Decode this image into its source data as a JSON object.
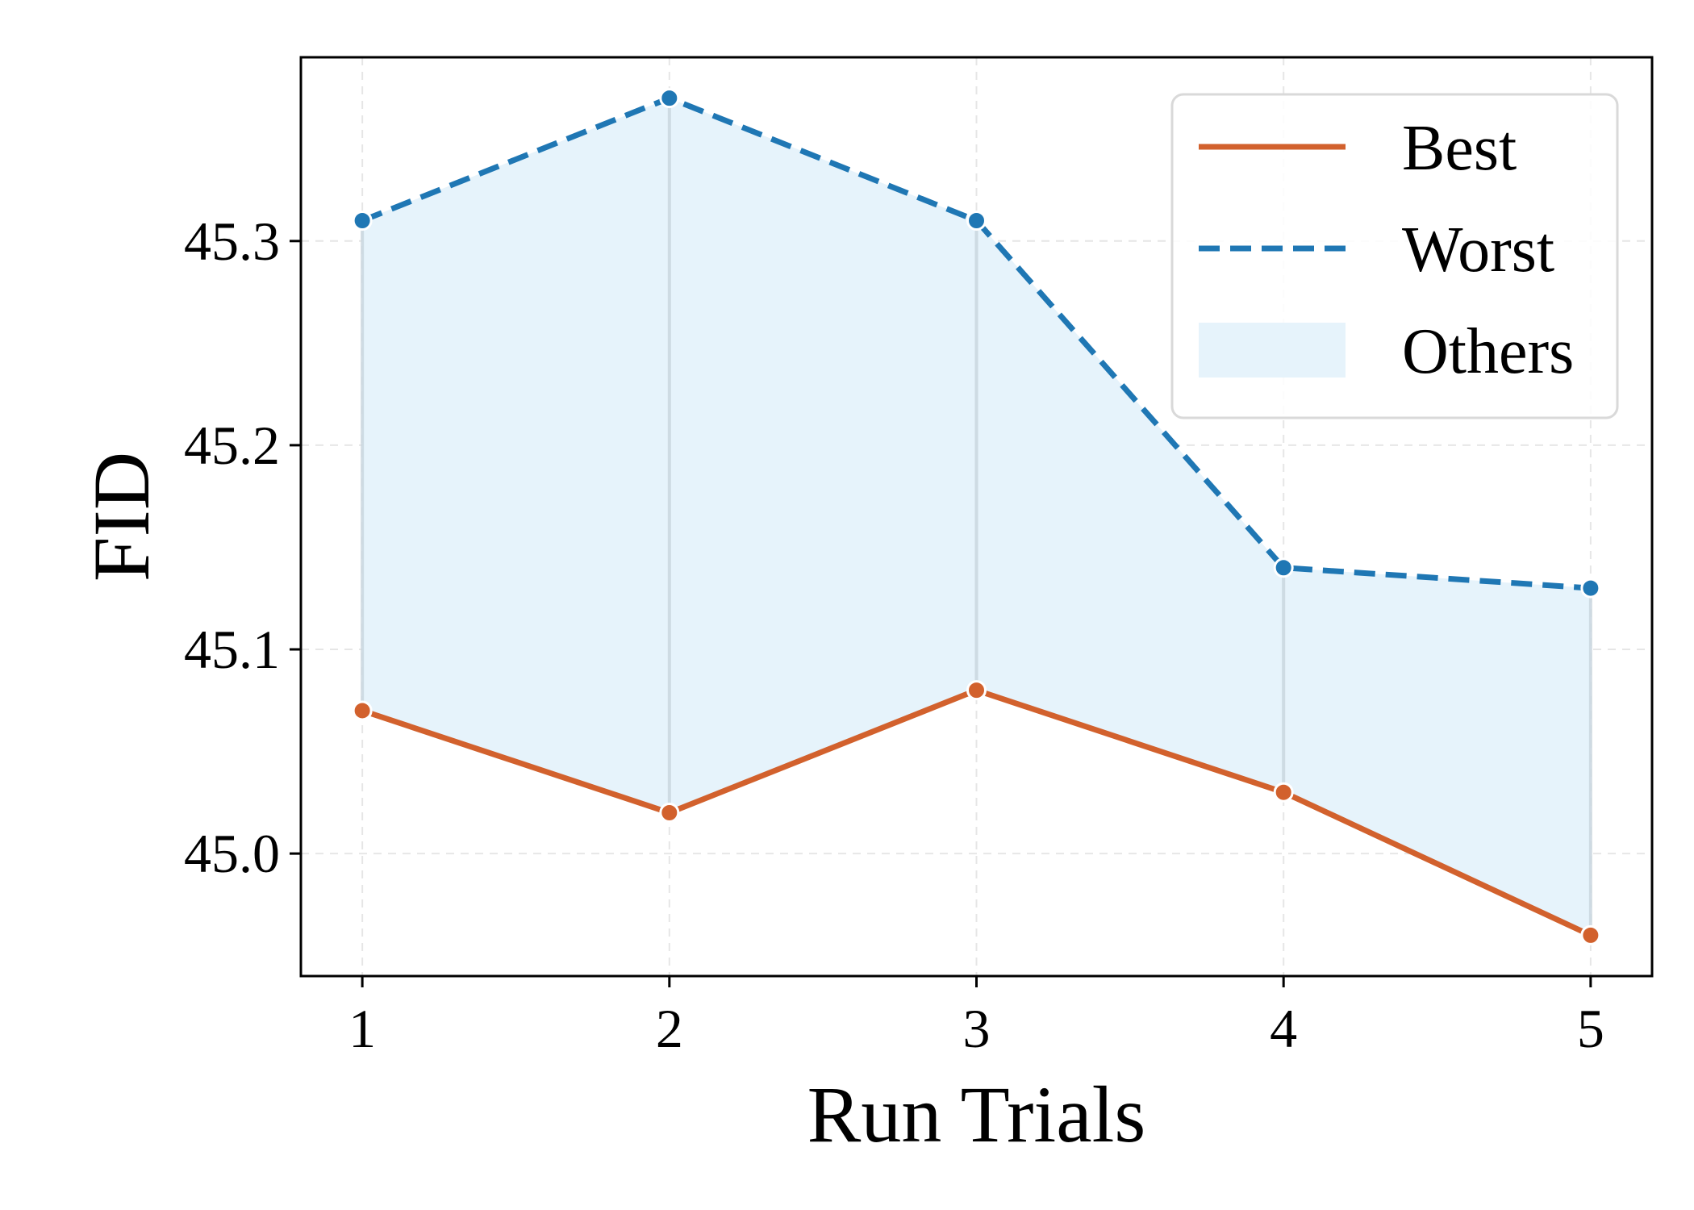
{
  "chart_data": {
    "type": "line",
    "title": "",
    "xlabel": "Run Trials",
    "ylabel": "FID",
    "x": [
      1,
      2,
      3,
      4,
      5
    ],
    "xticks": [
      "1",
      "2",
      "3",
      "4",
      "5"
    ],
    "yticks": [
      "45.0",
      "45.1",
      "45.2",
      "45.3"
    ],
    "ylim": [
      44.94,
      45.39
    ],
    "xlim": [
      0.8,
      5.2
    ],
    "grid": true,
    "legend_position": "top-right",
    "series": [
      {
        "name": "Best",
        "values": [
          45.07,
          45.02,
          45.08,
          45.03,
          44.96
        ],
        "color": "#D2612D",
        "style": "solid"
      },
      {
        "name": "Worst",
        "values": [
          45.31,
          45.37,
          45.31,
          45.14,
          45.13
        ],
        "color": "#1F77B4",
        "style": "dashed"
      }
    ],
    "band": {
      "name": "Others",
      "color": "#E6F3FB"
    }
  }
}
